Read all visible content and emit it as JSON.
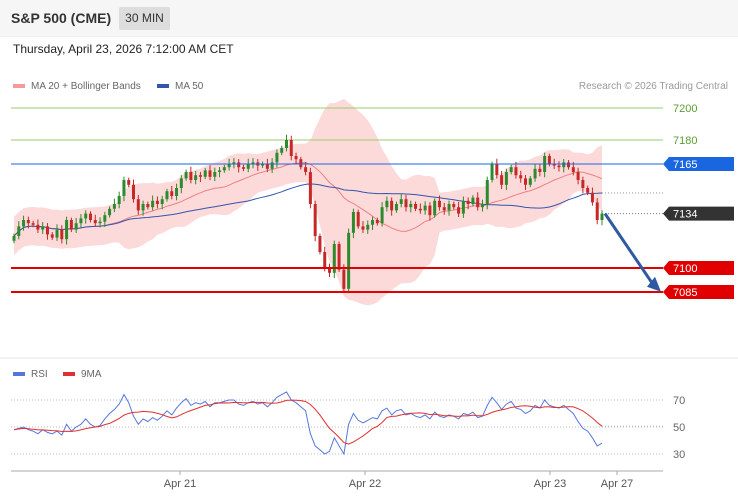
{
  "header": {
    "title": "S&P 500 (CME)",
    "timeframe": "30 MIN",
    "datetime": "Thursday, April 23, 2026 7:12:00 AM CET"
  },
  "legend": {
    "ma20": "MA 20 + Bollinger Bands",
    "ma50": "MA 50",
    "credit": "Research © 2026 Trading Central"
  },
  "rsi_legend": {
    "rsi": "RSI",
    "ma9": "9MA"
  },
  "colors": {
    "bullish_candle": "#2d8a2d",
    "bearish_candle": "#c62828",
    "bollinger_fill": "#fbd3d3",
    "ma20_line": "#f08080",
    "ma50_line": "#3355aa",
    "resistance_blue": "#1a66e0",
    "support_red": "#e00000",
    "last_price_tag": "#333333",
    "target_arrow": "#2d5aa0",
    "green_level": "#9ccc65",
    "rsi_line": "#5577dd",
    "rsi_ma_line": "#e03030"
  },
  "chart_data": [
    {
      "type": "candlestick",
      "name": "price",
      "x_labels": [
        "Apr 21",
        "Apr 22",
        "Apr 23",
        "Apr 27"
      ],
      "ylim": [
        7085,
        7210
      ],
      "price_levels": [
        {
          "value": 7200,
          "label": "7200",
          "style": "green-line"
        },
        {
          "value": 7180,
          "label": "7180",
          "style": "green-line"
        },
        {
          "value": 7165,
          "label": "7165",
          "style": "blue-tag"
        },
        {
          "value": 7134,
          "label": "7134",
          "style": "last-price-tag"
        },
        {
          "value": 7100,
          "label": "7100",
          "style": "red-tag"
        },
        {
          "value": 7085,
          "label": "7085",
          "style": "red-tag"
        }
      ],
      "closes": [
        7120,
        7126,
        7130,
        7128,
        7127,
        7124,
        7126,
        7121,
        7119,
        7124,
        7118,
        7130,
        7124,
        7128,
        7131,
        7134,
        7130,
        7128,
        7129,
        7133,
        7137,
        7140,
        7145,
        7155,
        7152,
        7143,
        7136,
        7140,
        7138,
        7142,
        7140,
        7143,
        7148,
        7145,
        7150,
        7156,
        7160,
        7155,
        7158,
        7157,
        7161,
        7157,
        7160,
        7161,
        7163,
        7165,
        7166,
        7163,
        7162,
        7165,
        7166,
        7164,
        7165,
        7162,
        7166,
        7172,
        7175,
        7180,
        7170,
        7168,
        7163,
        7160,
        7140,
        7120,
        7110,
        7100,
        7097,
        7115,
        7099,
        7087,
        7122,
        7135,
        7126,
        7124,
        7127,
        7130,
        7128,
        7138,
        7142,
        7136,
        7140,
        7143,
        7138,
        7140,
        7137,
        7136,
        7139,
        7133,
        7142,
        7138,
        7136,
        7140,
        7138,
        7134,
        7142,
        7140,
        7144,
        7138,
        7140,
        7155,
        7165,
        7158,
        7152,
        7160,
        7163,
        7158,
        7156,
        7152,
        7156,
        7162,
        7160,
        7170,
        7165,
        7164,
        7163,
        7166,
        7163,
        7160,
        7155,
        7150,
        7147,
        7141,
        7130,
        7134
      ],
      "rsi_scale": [
        30,
        50,
        70
      ],
      "rsi": [
        48,
        49,
        50,
        48,
        47,
        45,
        48,
        46,
        45,
        47,
        44,
        52,
        47,
        50,
        52,
        56,
        52,
        50,
        51,
        56,
        60,
        63,
        67,
        74,
        68,
        58,
        52,
        56,
        54,
        57,
        55,
        58,
        62,
        59,
        64,
        68,
        71,
        66,
        68,
        67,
        69,
        65,
        68,
        68,
        69,
        70,
        70,
        67,
        66,
        68,
        69,
        67,
        68,
        65,
        68,
        72,
        74,
        76,
        70,
        68,
        65,
        62,
        45,
        36,
        33,
        30,
        32,
        42,
        36,
        30,
        52,
        60,
        55,
        53,
        55,
        57,
        56,
        62,
        64,
        59,
        62,
        63,
        59,
        60,
        58,
        57,
        59,
        56,
        61,
        58,
        57,
        59,
        58,
        56,
        60,
        59,
        61,
        57,
        58,
        66,
        72,
        68,
        63,
        67,
        69,
        64,
        63,
        60,
        62,
        66,
        64,
        70,
        66,
        65,
        64,
        66,
        63,
        60,
        54,
        49,
        47,
        42,
        36,
        38
      ]
    }
  ]
}
